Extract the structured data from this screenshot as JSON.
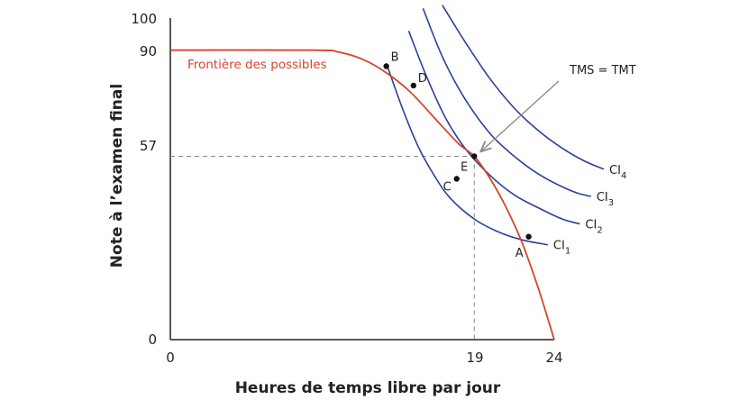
{
  "chart_data": {
    "type": "line",
    "xlabel": "Heures de temps libre par jour",
    "ylabel": "Note à l’examen final",
    "xlim": [
      0,
      24
    ],
    "ylim": [
      0,
      100
    ],
    "x_ticks": [
      "0",
      "19",
      "24"
    ],
    "y_ticks": [
      "0",
      "57",
      "90",
      "100"
    ],
    "colors": {
      "frontier": "#d8432b",
      "indifference": "#2b3f9b",
      "axis": "#222222",
      "guide": "#888888"
    },
    "frontier": {
      "name": "Frontière des possibles",
      "points": [
        [
          0,
          90
        ],
        [
          9,
          90
        ],
        [
          10.5,
          89.4
        ],
        [
          12,
          87.2
        ],
        [
          13.5,
          83
        ],
        [
          15,
          77
        ],
        [
          16.5,
          69
        ],
        [
          18,
          61
        ],
        [
          19,
          57
        ],
        [
          20,
          50
        ],
        [
          21,
          41
        ],
        [
          22,
          30
        ],
        [
          23,
          16
        ],
        [
          24,
          0
        ]
      ]
    },
    "indifference_curves": [
      {
        "name": "CI",
        "sub": "1",
        "points": [
          [
            13.5,
            86
          ],
          [
            14.5,
            72
          ],
          [
            15.5,
            60
          ],
          [
            16.5,
            51
          ],
          [
            17.5,
            44
          ],
          [
            19,
            37.5
          ],
          [
            20.5,
            33.5
          ],
          [
            22,
            31
          ],
          [
            23.6,
            29.5
          ]
        ]
      },
      {
        "name": "CI",
        "sub": "2",
        "points": [
          [
            14.9,
            96
          ],
          [
            16,
            82
          ],
          [
            17.2,
            69
          ],
          [
            18.5,
            59
          ],
          [
            20,
            51
          ],
          [
            21.5,
            45
          ],
          [
            23,
            41
          ],
          [
            24.5,
            37.5
          ],
          [
            25.6,
            36
          ]
        ]
      },
      {
        "name": "CI",
        "sub": "3",
        "points": [
          [
            15.8,
            103
          ],
          [
            17,
            88
          ],
          [
            18.4,
            75
          ],
          [
            20,
            64
          ],
          [
            21.5,
            57
          ],
          [
            23,
            51.5
          ],
          [
            24.5,
            47.5
          ],
          [
            25.5,
            45.5
          ],
          [
            26.3,
            44.5
          ]
        ]
      },
      {
        "name": "CI",
        "sub": "4",
        "points": [
          [
            17,
            104
          ],
          [
            18.5,
            92
          ],
          [
            20,
            81
          ],
          [
            21.5,
            72
          ],
          [
            23,
            65
          ],
          [
            24.5,
            59.5
          ],
          [
            25.9,
            55.5
          ],
          [
            27.1,
            53
          ]
        ]
      }
    ],
    "points": [
      {
        "label": "B",
        "x": 13.5,
        "y": 85
      },
      {
        "label": "D",
        "x": 15.2,
        "y": 79
      },
      {
        "label": "E",
        "x": 19,
        "y": 57
      },
      {
        "label": "C",
        "x": 17.9,
        "y": 50
      },
      {
        "label": "A",
        "x": 22.4,
        "y": 32
      }
    ],
    "guide_lines": {
      "x": 19,
      "y": 57
    },
    "annotations": [
      {
        "text": "TMS = TMT",
        "target_x": 19,
        "target_y": 57
      }
    ]
  }
}
